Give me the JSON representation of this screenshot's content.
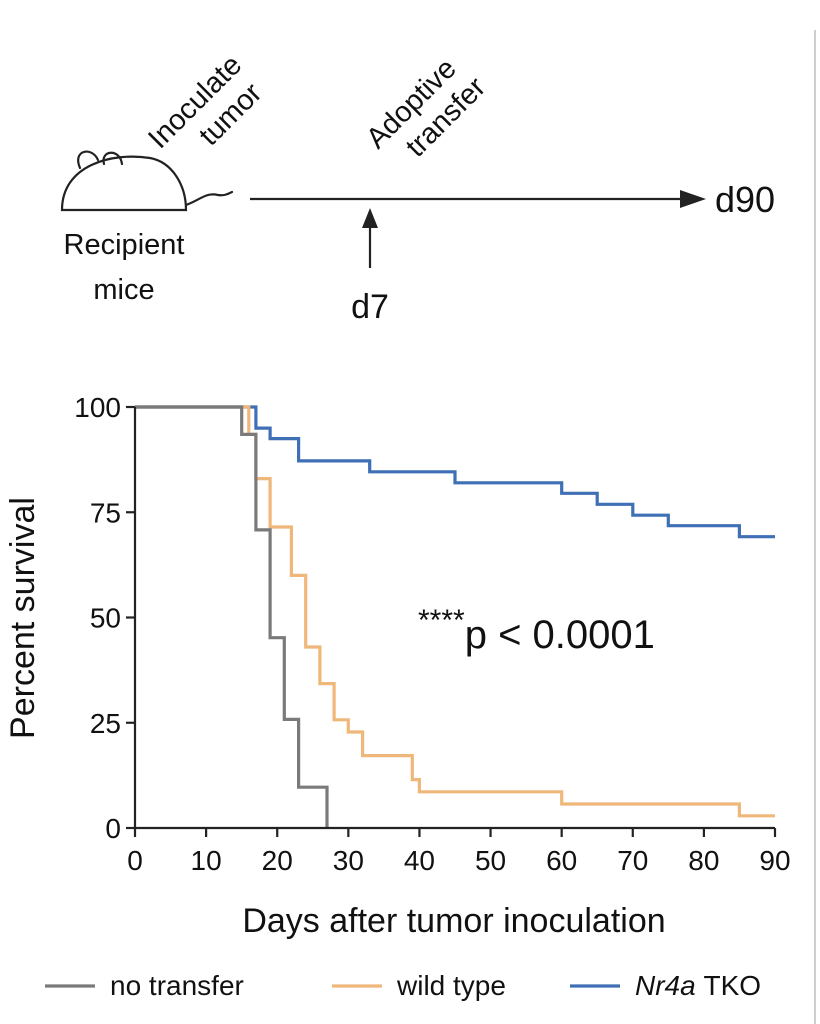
{
  "schematic": {
    "recipient_label_line1": "Recipient",
    "recipient_label_line2": "mice",
    "inoculate_line1": "Inoculate",
    "inoculate_line2": "tumor",
    "adoptive_line1": "Adoptive",
    "adoptive_line2": "transfer",
    "end_label": "d90",
    "transfer_day_label": "d7"
  },
  "annotation": {
    "stars": "****",
    "p_text": "p < 0.0001"
  },
  "colors": {
    "no_transfer": "#7a7a7a",
    "wild_type": "#f0b77a",
    "nr4a_tko": "#3f6fb5",
    "axis": "#222222"
  },
  "chart_data": {
    "type": "line",
    "subtype": "kaplan-meier step",
    "title": "",
    "xlabel": "Days after tumor inoculation",
    "ylabel": "Percent survival",
    "xlim": [
      0,
      90
    ],
    "ylim": [
      0,
      100
    ],
    "x_ticks": [
      0,
      10,
      20,
      30,
      40,
      50,
      60,
      70,
      80,
      90
    ],
    "y_ticks": [
      0,
      25,
      50,
      75,
      100
    ],
    "grid": false,
    "legend_position": "bottom",
    "series": [
      {
        "name": "no transfer",
        "name_italic_part": "",
        "color_key": "no_transfer",
        "points": [
          [
            0,
            100
          ],
          [
            15,
            100
          ],
          [
            15,
            93.5
          ],
          [
            17,
            93.5
          ],
          [
            17,
            70.8
          ],
          [
            19,
            70.8
          ],
          [
            19,
            45.2
          ],
          [
            21,
            45.2
          ],
          [
            21,
            25.8
          ],
          [
            23,
            25.8
          ],
          [
            23,
            9.7
          ],
          [
            27,
            9.7
          ],
          [
            27,
            0
          ]
        ]
      },
      {
        "name": "wild type",
        "name_italic_part": "",
        "color_key": "wild_type",
        "points": [
          [
            0,
            100
          ],
          [
            16,
            100
          ],
          [
            16,
            93.5
          ],
          [
            17,
            93.5
          ],
          [
            17,
            83
          ],
          [
            19,
            83
          ],
          [
            19,
            71.5
          ],
          [
            22,
            71.5
          ],
          [
            22,
            60
          ],
          [
            24,
            60
          ],
          [
            24,
            43
          ],
          [
            26,
            43
          ],
          [
            26,
            34.3
          ],
          [
            28,
            34.3
          ],
          [
            28,
            25.7
          ],
          [
            30,
            25.7
          ],
          [
            30,
            22.8
          ],
          [
            32,
            22.8
          ],
          [
            32,
            17.2
          ],
          [
            39,
            17.2
          ],
          [
            39,
            11.5
          ],
          [
            40,
            11.5
          ],
          [
            40,
            8.6
          ],
          [
            60,
            8.6
          ],
          [
            60,
            5.7
          ],
          [
            85,
            5.7
          ],
          [
            85,
            2.9
          ],
          [
            90,
            2.9
          ]
        ]
      },
      {
        "name": "TKO",
        "name_italic_part": "Nr4a",
        "color_key": "nr4a_tko",
        "points": [
          [
            0,
            100
          ],
          [
            17,
            100
          ],
          [
            17,
            95
          ],
          [
            19,
            95
          ],
          [
            19,
            92.5
          ],
          [
            23,
            92.5
          ],
          [
            23,
            87.2
          ],
          [
            33,
            87.2
          ],
          [
            33,
            84.6
          ],
          [
            45,
            84.6
          ],
          [
            45,
            82
          ],
          [
            60,
            82
          ],
          [
            60,
            79.5
          ],
          [
            65,
            79.5
          ],
          [
            65,
            76.9
          ],
          [
            70,
            76.9
          ],
          [
            70,
            74.3
          ],
          [
            75,
            74.3
          ],
          [
            75,
            71.8
          ],
          [
            85,
            71.8
          ],
          [
            85,
            69.2
          ],
          [
            90,
            69.2
          ]
        ]
      }
    ]
  }
}
